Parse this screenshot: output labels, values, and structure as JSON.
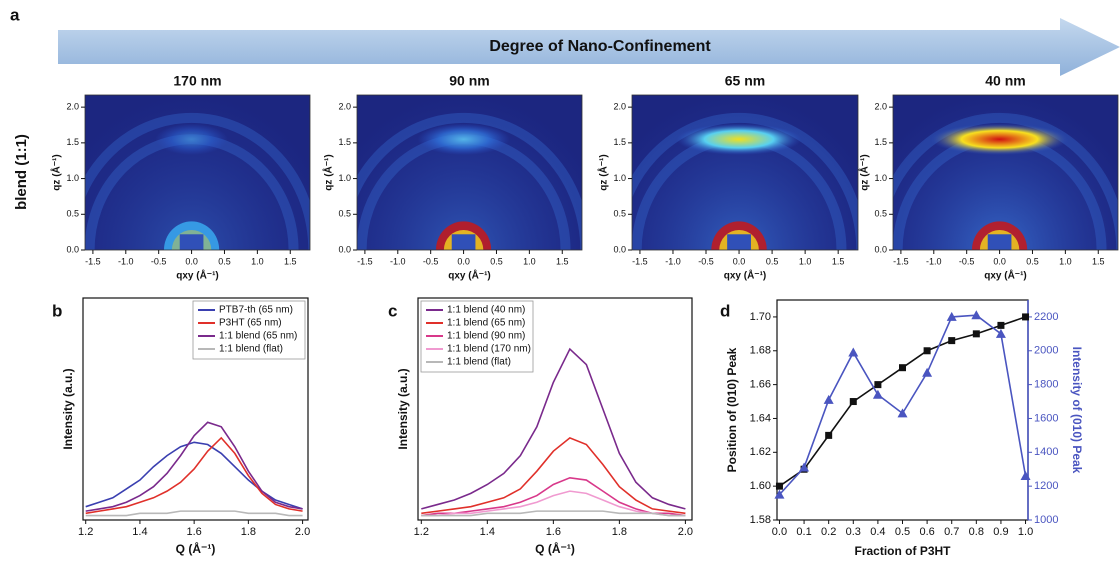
{
  "panel_labels": [
    "a",
    "b",
    "c",
    "d"
  ],
  "banner": "Degree of Nano-Confinement",
  "row_label": "blend (1:1)",
  "chart_data": [
    {
      "type": "giwaxs",
      "title": "170 nm",
      "xlabel": "qxy (Å⁻¹)",
      "ylabel": "qz (Å⁻¹)",
      "xlim": [
        -1.62,
        1.8
      ],
      "ylim": [
        0,
        2.17
      ],
      "xticks": [
        {
          "value": -1.5,
          "label": "-1.5"
        },
        {
          "value": -1,
          "label": "-1.0"
        },
        {
          "value": -0.5,
          "label": "-0.5"
        },
        {
          "value": 0,
          "label": "0.0"
        },
        0.5,
        {
          "value": 1,
          "label": "1.0"
        },
        1.5
      ],
      "yticks": [
        {
          "value": 0,
          "label": "0.0"
        },
        0.5,
        {
          "value": 1,
          "label": "1.0"
        },
        1.5,
        {
          "value": 2,
          "label": "2.0"
        }
      ]
    },
    {
      "type": "giwaxs",
      "title": "90 nm",
      "xlabel": "qxy (Å⁻¹)",
      "ylabel": "qz (Å⁻¹)",
      "xlim": [
        -1.62,
        1.8
      ],
      "ylim": [
        0,
        2.17
      ],
      "xticks": [
        {
          "value": -1.5,
          "label": "-1.5"
        },
        {
          "value": -1,
          "label": "-1.0"
        },
        {
          "value": -0.5,
          "label": "-0.5"
        },
        {
          "value": 0,
          "label": "0.0"
        },
        0.5,
        {
          "value": 1,
          "label": "1.0"
        },
        1.5
      ],
      "yticks": [
        {
          "value": 0,
          "label": "0.0"
        },
        0.5,
        {
          "value": 1,
          "label": "1.0"
        },
        1.5,
        {
          "value": 2,
          "label": "2.0"
        }
      ]
    },
    {
      "type": "giwaxs",
      "title": "65 nm",
      "xlabel": "qxy (Å⁻¹)",
      "ylabel": "qz (Å⁻¹)",
      "xlim": [
        -1.62,
        1.8
      ],
      "ylim": [
        0,
        2.17
      ],
      "xticks": [
        {
          "value": -1.5,
          "label": "-1.5"
        },
        {
          "value": -1,
          "label": "-1.0"
        },
        {
          "value": -0.5,
          "label": "-0.5"
        },
        {
          "value": 0,
          "label": "0.0"
        },
        0.5,
        {
          "value": 1,
          "label": "1.0"
        },
        1.5
      ],
      "yticks": [
        {
          "value": 0,
          "label": "0.0"
        },
        0.5,
        {
          "value": 1,
          "label": "1.0"
        },
        1.5,
        {
          "value": 2,
          "label": "2.0"
        }
      ]
    },
    {
      "type": "giwaxs",
      "title": "40 nm",
      "xlabel": "qxy (Å⁻¹)",
      "ylabel": "qz (Å⁻¹)",
      "xlim": [
        -1.62,
        1.8
      ],
      "ylim": [
        0,
        2.17
      ],
      "xticks": [
        {
          "value": -1.5,
          "label": "-1.5"
        },
        {
          "value": -1,
          "label": "-1.0"
        },
        {
          "value": -0.5,
          "label": "-0.5"
        },
        {
          "value": 0,
          "label": "0.0"
        },
        0.5,
        {
          "value": 1,
          "label": "1.0"
        },
        1.5
      ],
      "yticks": [
        {
          "value": 0,
          "label": "0.0"
        },
        0.5,
        {
          "value": 1,
          "label": "1.0"
        },
        1.5,
        {
          "value": 2,
          "label": "2.0"
        }
      ]
    },
    {
      "type": "line",
      "xlabel": "Q (Å⁻¹)",
      "ylabel": "Intensity (a.u.)",
      "xlim": [
        1.19,
        2.02
      ],
      "ylim": [
        0,
        1
      ],
      "xticks": [
        1.2,
        1.4,
        1.6,
        1.8,
        {
          "value": 2,
          "label": "2.0"
        }
      ],
      "legend": "upper right",
      "x": [
        1.2,
        1.25,
        1.3,
        1.35,
        1.4,
        1.45,
        1.5,
        1.55,
        1.6,
        1.65,
        1.7,
        1.75,
        1.8,
        1.85,
        1.9,
        1.95,
        2.0
      ],
      "series": [
        {
          "name": "PTB7-th (65 nm)",
          "color": "#3a3fb0",
          "values": [
            0.06,
            0.08,
            0.1,
            0.14,
            0.18,
            0.24,
            0.29,
            0.33,
            0.35,
            0.34,
            0.3,
            0.24,
            0.18,
            0.13,
            0.09,
            0.07,
            0.05
          ]
        },
        {
          "name": "P3HT (65 nm)",
          "color": "#e0302a",
          "values": [
            0.03,
            0.04,
            0.05,
            0.06,
            0.08,
            0.1,
            0.13,
            0.17,
            0.23,
            0.31,
            0.37,
            0.3,
            0.2,
            0.12,
            0.07,
            0.05,
            0.04
          ]
        },
        {
          "name": "1:1 blend (65 nm)",
          "color": "#7a2a8c",
          "values": [
            0.04,
            0.05,
            0.06,
            0.08,
            0.11,
            0.15,
            0.21,
            0.29,
            0.38,
            0.44,
            0.42,
            0.33,
            0.22,
            0.13,
            0.08,
            0.06,
            0.05
          ]
        },
        {
          "name": "1:1 blend (flat)",
          "color": "#b8b8b8",
          "values": [
            0.02,
            0.02,
            0.02,
            0.02,
            0.03,
            0.03,
            0.03,
            0.04,
            0.04,
            0.04,
            0.04,
            0.04,
            0.03,
            0.03,
            0.03,
            0.02,
            0.02
          ]
        }
      ]
    },
    {
      "type": "line",
      "xlabel": "Q (Å⁻¹)",
      "ylabel": "Intensity (a.u.)",
      "xlim": [
        1.19,
        2.02
      ],
      "ylim": [
        0,
        1
      ],
      "xticks": [
        1.2,
        1.4,
        1.6,
        1.8,
        {
          "value": 2,
          "label": "2.0"
        }
      ],
      "legend": "upper left",
      "x": [
        1.2,
        1.25,
        1.3,
        1.35,
        1.4,
        1.45,
        1.5,
        1.55,
        1.6,
        1.65,
        1.7,
        1.75,
        1.8,
        1.85,
        1.9,
        1.95,
        2.0
      ],
      "series": [
        {
          "name": "1:1 blend (40 nm)",
          "color": "#7a2a8c",
          "values": [
            0.05,
            0.07,
            0.09,
            0.12,
            0.16,
            0.21,
            0.29,
            0.42,
            0.62,
            0.77,
            0.7,
            0.5,
            0.3,
            0.17,
            0.1,
            0.07,
            0.05
          ]
        },
        {
          "name": "1:1 blend (65 nm)",
          "color": "#e0302a",
          "values": [
            0.03,
            0.04,
            0.05,
            0.06,
            0.08,
            0.1,
            0.14,
            0.22,
            0.31,
            0.37,
            0.34,
            0.25,
            0.15,
            0.09,
            0.05,
            0.04,
            0.03
          ]
        },
        {
          "name": "1:1 blend (90 nm)",
          "color": "#d8388a",
          "values": [
            0.02,
            0.03,
            0.03,
            0.04,
            0.05,
            0.06,
            0.08,
            0.11,
            0.16,
            0.19,
            0.18,
            0.13,
            0.08,
            0.05,
            0.03,
            0.03,
            0.02
          ]
        },
        {
          "name": "1:1 blend (170 nm)",
          "color": "#f09ad0",
          "values": [
            0.02,
            0.02,
            0.03,
            0.03,
            0.04,
            0.05,
            0.06,
            0.08,
            0.11,
            0.13,
            0.12,
            0.09,
            0.06,
            0.04,
            0.03,
            0.02,
            0.02
          ]
        },
        {
          "name": "1:1 blend (flat)",
          "color": "#b8b8b8",
          "values": [
            0.02,
            0.02,
            0.02,
            0.02,
            0.03,
            0.03,
            0.03,
            0.04,
            0.04,
            0.04,
            0.04,
            0.04,
            0.03,
            0.03,
            0.03,
            0.02,
            0.02
          ]
        }
      ]
    },
    {
      "type": "dual",
      "xlabel": "Fraction of P3HT",
      "ylabel": "Position of (010) Peak",
      "y2label": "Intensity of (010) Peak",
      "xlim": [
        -0.01,
        1.01
      ],
      "ylim": [
        1.58,
        1.71
      ],
      "y2lim": [
        1000,
        2300
      ],
      "xticks": [
        {
          "value": 0,
          "label": "0.0"
        },
        0.1,
        0.2,
        0.3,
        0.4,
        0.5,
        0.6,
        0.7,
        0.8,
        0.9,
        {
          "value": 1,
          "label": "1.0"
        }
      ],
      "yticks": [
        1.58,
        {
          "value": 1.6,
          "label": "1.60"
        },
        1.62,
        1.64,
        1.66,
        1.68,
        {
          "value": 1.7,
          "label": "1.70"
        }
      ],
      "y2ticks": [
        1000,
        1200,
        1400,
        1600,
        1800,
        2000,
        2200
      ],
      "x": [
        0,
        0.1,
        0.2,
        0.3,
        0.4,
        0.5,
        0.6,
        0.7,
        0.8,
        0.9,
        1.0
      ],
      "series": [
        {
          "color": "#111111",
          "marker": "square",
          "values": [
            1.6,
            1.61,
            1.63,
            1.65,
            1.66,
            1.67,
            1.68,
            1.686,
            1.69,
            1.695,
            1.7
          ]
        },
        {
          "color": "#4a55c0",
          "marker": "triangle",
          "axis": "y2",
          "values": [
            1150,
            1310,
            1710,
            1990,
            1740,
            1630,
            1870,
            2200,
            2210,
            2100,
            1260
          ]
        }
      ]
    }
  ]
}
